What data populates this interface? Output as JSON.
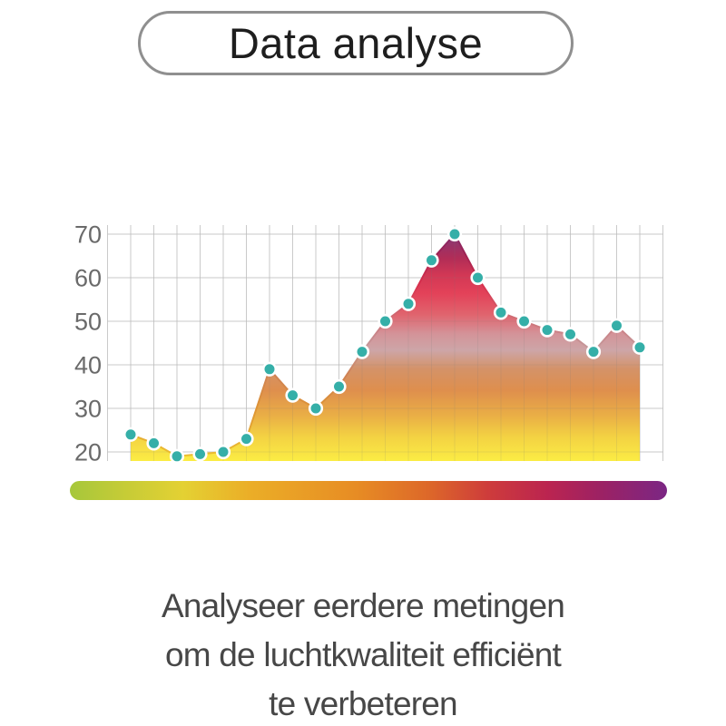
{
  "header": {
    "title": "Data analyse"
  },
  "chart_data": {
    "type": "area",
    "title": "",
    "xlabel": "",
    "ylabel": "",
    "x_labels_shown": false,
    "values": [
      24,
      22,
      19,
      19.5,
      20,
      23,
      39,
      33,
      30,
      35,
      43,
      50,
      54,
      64,
      70,
      60,
      52,
      50,
      48,
      47,
      43,
      49,
      44
    ],
    "y_ticks": [
      20,
      30,
      40,
      50,
      60,
      70
    ],
    "ylim": [
      18,
      72
    ],
    "grid": true,
    "legend_position": "none",
    "point_color": "#35AFA8",
    "point_ring_color": "#FFFFFF",
    "fill_gradient_stops": [
      [
        "0%",
        "#7F3A80"
      ],
      [
        "5%",
        "#833270"
      ],
      [
        "9%",
        "#97295F"
      ],
      [
        "14%",
        "#AE2450"
      ],
      [
        "21%",
        "#CF2F4E"
      ],
      [
        "29%",
        "#E23A52"
      ],
      [
        "38%",
        "#DF5E68"
      ],
      [
        "46%",
        "#D28E94"
      ],
      [
        "53%",
        "#CBA2A4"
      ],
      [
        "61%",
        "#D28E62"
      ],
      [
        "70%",
        "#DD8A46"
      ],
      [
        "81%",
        "#E9AC3E"
      ],
      [
        "90%",
        "#F3D13B"
      ],
      [
        "100%",
        "#FBEC3D"
      ]
    ],
    "line_gradient_stops": [
      [
        "0%",
        "#76307A"
      ],
      [
        "12%",
        "#9E2253"
      ],
      [
        "25%",
        "#D92E4B"
      ],
      [
        "40%",
        "#CF7076"
      ],
      [
        "52%",
        "#C49A9C"
      ],
      [
        "63%",
        "#CF8155"
      ],
      [
        "78%",
        "#DE9434"
      ],
      [
        "100%",
        "#EDC230"
      ]
    ]
  },
  "legend_bar": {
    "gradient_stops": [
      [
        "0%",
        "#A6C73B"
      ],
      [
        "8%",
        "#C2CB37"
      ],
      [
        "19%",
        "#E4D133"
      ],
      [
        "30%",
        "#EBAE27"
      ],
      [
        "48%",
        "#E78C24"
      ],
      [
        "60%",
        "#DD6829"
      ],
      [
        "70%",
        "#CE3C3B"
      ],
      [
        "80%",
        "#BB2450"
      ],
      [
        "89%",
        "#9C2264"
      ],
      [
        "100%",
        "#7B2684"
      ]
    ]
  },
  "caption": {
    "lines": [
      "Analyseer eerdere metingen",
      "om de luchtkwaliteit efficiënt",
      "te verbeteren"
    ]
  },
  "colors": {
    "grid": "#D7D7D7",
    "tick_label": "#6A6A6A",
    "pill_border": "#8F8F8F",
    "title_text": "#1E1E1E",
    "caption_text": "#474747"
  }
}
